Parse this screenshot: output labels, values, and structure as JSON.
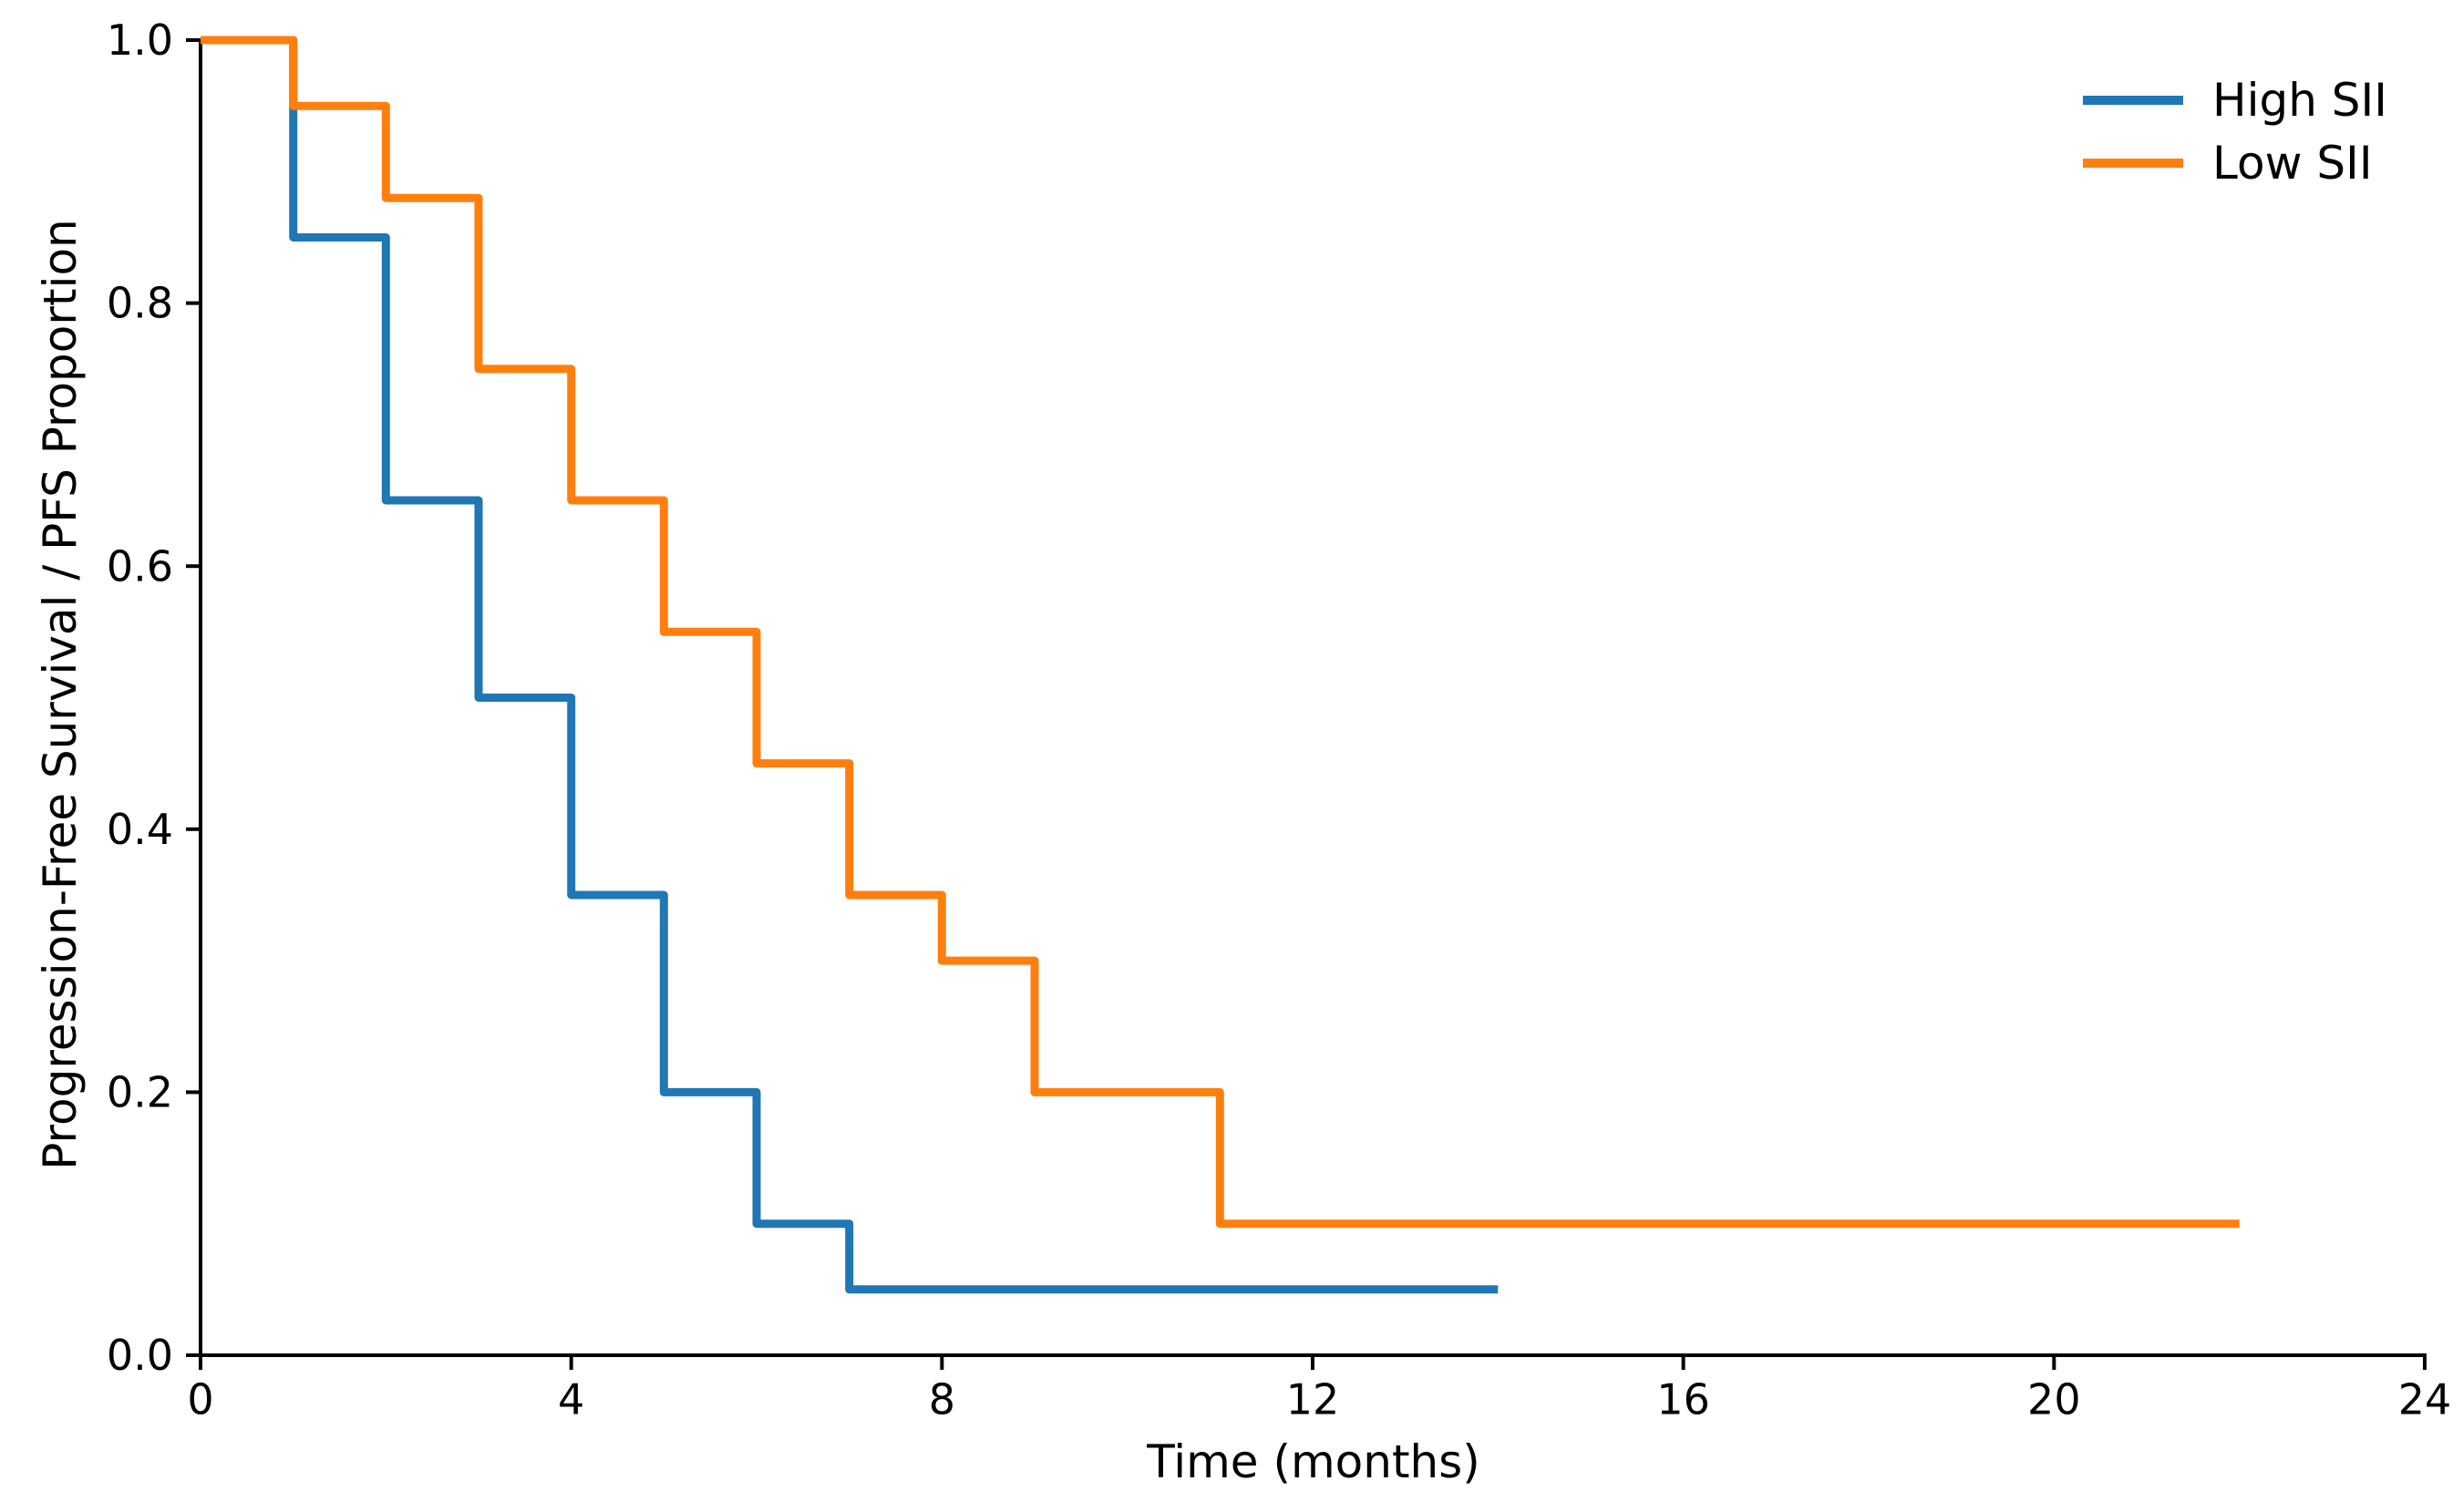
{
  "chart_data": {
    "type": "line",
    "subtype": "kaplan-meier-step",
    "title": "",
    "xlabel": "Time (months)",
    "ylabel": "Progression-Free Survival / PFS Proportion",
    "xlim": [
      0,
      24
    ],
    "ylim": [
      0.0,
      1.0
    ],
    "xticks": [
      0,
      4,
      8,
      12,
      16,
      20,
      24
    ],
    "yticks": [
      0.0,
      0.2,
      0.4,
      0.6,
      0.8,
      1.0
    ],
    "ytick_labels": [
      "0.0",
      "0.2",
      "0.4",
      "0.6",
      "0.8",
      "1.0"
    ],
    "grid": false,
    "legend_position": "upper right",
    "axis_color": "#000000",
    "background_color": "#ffffff",
    "series": [
      {
        "name": "High SII",
        "color": "#1f77b4",
        "steps": [
          [
            0,
            1.0
          ],
          [
            1,
            0.85
          ],
          [
            2,
            0.65
          ],
          [
            3,
            0.5
          ],
          [
            4,
            0.35
          ],
          [
            5,
            0.2
          ],
          [
            6,
            0.1
          ],
          [
            7,
            0.05
          ]
        ],
        "end_time": 14
      },
      {
        "name": "Low SII",
        "color": "#ff7f0e",
        "steps": [
          [
            0,
            1.0
          ],
          [
            1,
            0.95
          ],
          [
            2,
            0.88
          ],
          [
            3,
            0.75
          ],
          [
            4,
            0.65
          ],
          [
            5,
            0.55
          ],
          [
            6,
            0.45
          ],
          [
            7,
            0.35
          ],
          [
            8,
            0.3
          ],
          [
            9,
            0.2
          ],
          [
            11,
            0.1
          ]
        ],
        "end_time": 22
      }
    ]
  }
}
